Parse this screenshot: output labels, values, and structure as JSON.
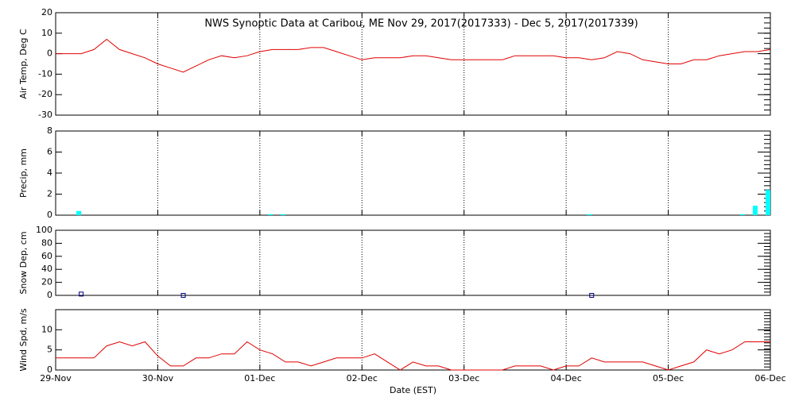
{
  "chart_data": [
    {
      "type": "line",
      "title": "NWS Synoptic Data at Caribou, ME   Nov 29, 2017(2017333) - Dec  5, 2017(2017339)",
      "ylabel": "Air Temp, Deg C",
      "color": "#e00000",
      "ylim": [
        -30,
        20
      ],
      "yticks": [
        -30,
        -20,
        -10,
        0,
        10,
        20
      ],
      "grid": true,
      "values": [
        0,
        0,
        0,
        2,
        7,
        2,
        0,
        -2,
        -5,
        -7,
        -9,
        -6,
        -3,
        -1,
        -2,
        -1,
        1,
        2,
        2,
        2,
        3,
        3,
        1,
        -1,
        -3,
        -2,
        -2,
        -2,
        -1,
        -1,
        -2,
        -3,
        -3,
        -3,
        -3,
        -3,
        -1,
        -1,
        -1,
        -1,
        -2,
        -2,
        -3,
        -2,
        1,
        0,
        -3,
        -4,
        -5,
        -5,
        -3,
        -3,
        -1,
        0,
        1,
        1,
        2
      ]
    },
    {
      "type": "bar",
      "ylabel": "Precip, mm",
      "color": "#00ffff",
      "ylim": [
        0,
        8
      ],
      "yticks": [
        0,
        2,
        4,
        6,
        8
      ],
      "grid": true,
      "values": [
        0,
        0,
        0.4,
        0,
        0,
        0,
        0,
        0,
        0,
        0,
        0,
        0,
        0,
        0,
        0,
        0,
        0,
        0.1,
        0.1,
        0,
        0,
        0,
        0,
        0,
        0,
        0,
        0,
        0,
        0,
        0,
        0,
        0,
        0,
        0,
        0,
        0,
        0,
        0,
        0,
        0,
        0,
        0,
        0.1,
        0,
        0,
        0,
        0,
        0,
        0,
        0,
        0,
        0,
        0,
        0,
        0.1,
        0.9,
        2.4
      ]
    },
    {
      "type": "scatter",
      "ylabel": "Snow Dep, cm",
      "color": "#000080",
      "ylim": [
        0,
        100
      ],
      "yticks": [
        0,
        20,
        40,
        60,
        80,
        100
      ],
      "grid": true,
      "values": [
        null,
        null,
        2,
        null,
        null,
        null,
        null,
        null,
        null,
        null,
        0,
        null,
        null,
        null,
        null,
        null,
        null,
        null,
        null,
        null,
        null,
        null,
        null,
        null,
        null,
        null,
        null,
        null,
        null,
        null,
        null,
        null,
        null,
        null,
        null,
        null,
        null,
        null,
        null,
        null,
        null,
        null,
        0,
        null,
        null,
        null,
        null,
        null,
        null,
        null,
        null,
        null,
        null,
        null,
        null,
        null,
        null
      ]
    },
    {
      "type": "line",
      "ylabel": "Wind Spd, m/s",
      "xlabel": "Date (EST)",
      "color": "#e00000",
      "ylim": [
        0,
        15
      ],
      "yticks": [
        0,
        5,
        10
      ],
      "grid": true,
      "categories": [
        "29-Nov",
        null,
        null,
        null,
        null,
        null,
        null,
        null,
        "30-Nov",
        null,
        null,
        null,
        null,
        null,
        null,
        null,
        "01-Dec",
        null,
        null,
        null,
        null,
        null,
        null,
        null,
        "02-Dec",
        null,
        null,
        null,
        null,
        null,
        null,
        null,
        "03-Dec",
        null,
        null,
        null,
        null,
        null,
        null,
        null,
        "04-Dec",
        null,
        null,
        null,
        null,
        null,
        null,
        null,
        "05-Dec",
        null,
        null,
        null,
        null,
        null,
        null,
        null,
        "06-Dec"
      ],
      "values": [
        3,
        3,
        3,
        3,
        6,
        7,
        6,
        7,
        3.5,
        1,
        1,
        3,
        3,
        4,
        4,
        7,
        5,
        4,
        2,
        2,
        1,
        2,
        3,
        3,
        3,
        4,
        2,
        0,
        2,
        1,
        1,
        0,
        0,
        0,
        0,
        0,
        1,
        1,
        1,
        0,
        1,
        1,
        3,
        2,
        2,
        2,
        2,
        1,
        0,
        1,
        2,
        5,
        4,
        5,
        7,
        7,
        7
      ]
    }
  ]
}
